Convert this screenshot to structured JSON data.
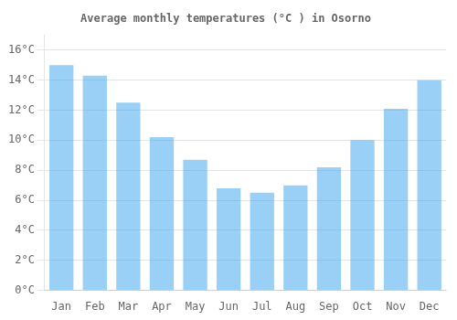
{
  "chart_data": {
    "type": "bar",
    "title": "Average monthly temperatures (°C ) in Osorno",
    "categories": [
      "Jan",
      "Feb",
      "Mar",
      "Apr",
      "May",
      "Jun",
      "Jul",
      "Aug",
      "Sep",
      "Oct",
      "Nov",
      "Dec"
    ],
    "values": [
      15.0,
      14.3,
      12.5,
      10.2,
      8.7,
      6.8,
      6.5,
      7.0,
      8.2,
      10.0,
      12.1,
      14.0
    ],
    "ylim": [
      0,
      17.0
    ],
    "yticks": [
      {
        "value": 0,
        "label": "0°C"
      },
      {
        "value": 2,
        "label": "2°C"
      },
      {
        "value": 4,
        "label": "4°C"
      },
      {
        "value": 6,
        "label": "6°C"
      },
      {
        "value": 8,
        "label": "8°C"
      },
      {
        "value": 10,
        "label": "10°C"
      },
      {
        "value": 12,
        "label": "12°C"
      },
      {
        "value": 14,
        "label": "14°C"
      },
      {
        "value": 16,
        "label": "16°C"
      }
    ],
    "grid": true
  }
}
